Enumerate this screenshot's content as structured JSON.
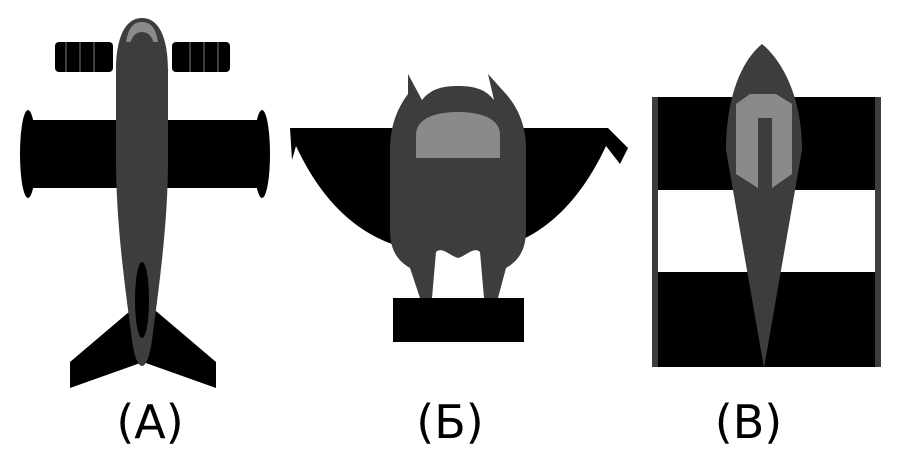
{
  "figures": [
    {
      "label": "(А)",
      "icon": "airplane-topdown-icon"
    },
    {
      "label": "(Б)",
      "icon": "jet-lander-topdown-icon"
    },
    {
      "label": "(В)",
      "icon": "rocket-plane-topdown-icon"
    }
  ],
  "colors": {
    "black": "#000000",
    "body": "#3d3d3d",
    "highlight": "#8a8a8a",
    "background": "#ffffff"
  }
}
